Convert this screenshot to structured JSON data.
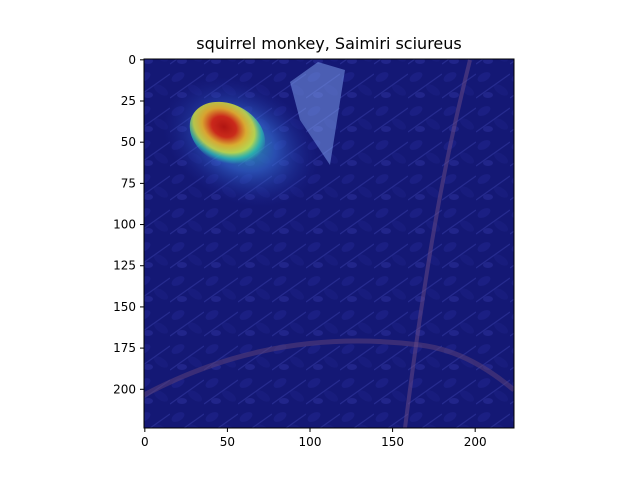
{
  "chart_data": {
    "type": "heatmap",
    "title": "squirrel monkey, Saimiri sciureus",
    "xlabel": "",
    "ylabel": "",
    "image_extent": {
      "x": [
        0,
        224
      ],
      "y": [
        224,
        0
      ]
    },
    "xlim": [
      -0.5,
      223.5
    ],
    "ylim": [
      223.5,
      -0.5
    ],
    "y_inverted": true,
    "grid": false,
    "colormap": "jet",
    "x_ticks": [
      0,
      50,
      100,
      150,
      200
    ],
    "y_ticks": [
      0,
      25,
      50,
      75,
      100,
      125,
      150,
      175,
      200
    ],
    "x_tick_labels": [
      "0",
      "50",
      "100",
      "150",
      "200"
    ],
    "y_tick_labels": [
      "0",
      "25",
      "50",
      "75",
      "100",
      "125",
      "150",
      "175",
      "200"
    ],
    "heat_peak": {
      "x": 50,
      "y": 45,
      "x_halfwidth": 24,
      "y_halfwidth": 18,
      "tilt_deg": 28
    },
    "heat_halo": {
      "x": 58,
      "y": 50,
      "x_halfwidth": 50,
      "y_halfwidth": 36,
      "tilt_deg": 28
    },
    "colors": {
      "background": "#0c0d5c",
      "low": "#1f2aa0",
      "mid_low": "#3a78e0",
      "mid": "#2cd3b0",
      "mid_high": "#d8e83a",
      "high": "#f0b020",
      "peak": "#b8100a"
    }
  }
}
